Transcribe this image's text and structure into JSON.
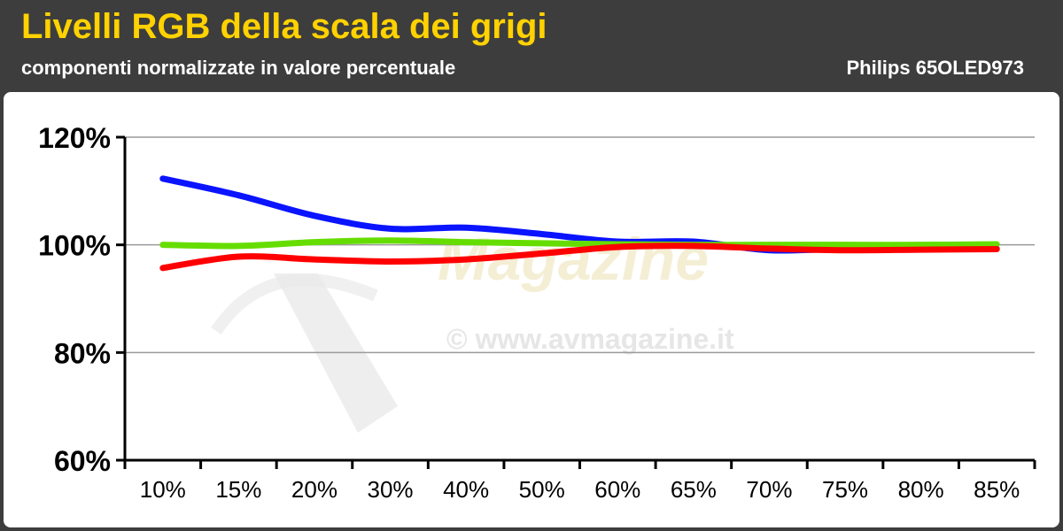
{
  "header": {
    "title": "Livelli RGB della scala dei grigi",
    "subtitle": "componenti normalizzate in valore percentuale",
    "model": "Philips 65OLED973"
  },
  "watermark": {
    "logo_text": "Magazine",
    "url": "© www.avmagazine.it"
  },
  "colors": {
    "background": "#3d3d3d",
    "title": "#ffd200",
    "blue": "#0a14ff",
    "green": "#66dd00",
    "red": "#ff0000"
  },
  "chart_data": {
    "type": "line",
    "categories": [
      "10%",
      "15%",
      "20%",
      "30%",
      "40%",
      "50%",
      "60%",
      "65%",
      "70%",
      "75%",
      "80%",
      "85%"
    ],
    "y_ticks": [
      "60%",
      "80%",
      "100%",
      "120%"
    ],
    "ylim": [
      60,
      120
    ],
    "grid": true,
    "series": [
      {
        "color": "#0a14ff",
        "values": [
          112.3,
          109.2,
          105.4,
          103.0,
          103.2,
          102.0,
          100.6,
          100.6,
          99.0,
          99.3,
          99.3,
          99.3
        ]
      },
      {
        "color": "#66dd00",
        "values": [
          100.0,
          99.8,
          100.5,
          100.8,
          100.5,
          100.3,
          100.1,
          100.0,
          100.0,
          100.0,
          100.0,
          100.1
        ]
      },
      {
        "color": "#ff0000",
        "values": [
          95.7,
          97.8,
          97.3,
          96.9,
          97.3,
          98.4,
          99.6,
          99.8,
          99.3,
          99.0,
          99.1,
          99.2
        ]
      }
    ]
  }
}
